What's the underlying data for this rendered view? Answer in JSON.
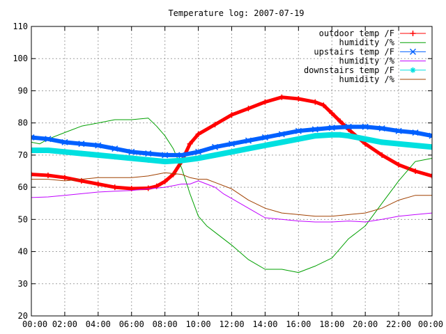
{
  "chart_data": {
    "type": "line",
    "title": "Temperature log: 2007-07-19",
    "xlabel": "",
    "ylabel": "",
    "xlim": [
      0,
      24
    ],
    "ylim": [
      20,
      110
    ],
    "grid": true,
    "legend_position": "top-right",
    "x_ticks": [
      {
        "value": 0,
        "label": "00:00"
      },
      {
        "value": 2,
        "label": "02:00"
      },
      {
        "value": 4,
        "label": "04:00"
      },
      {
        "value": 6,
        "label": "06:00"
      },
      {
        "value": 8,
        "label": "08:00"
      },
      {
        "value": 10,
        "label": "10:00"
      },
      {
        "value": 12,
        "label": "12:00"
      },
      {
        "value": 14,
        "label": "14:00"
      },
      {
        "value": 16,
        "label": "16:00"
      },
      {
        "value": 18,
        "label": "18:00"
      },
      {
        "value": 20,
        "label": "20:00"
      },
      {
        "value": 22,
        "label": "22:00"
      },
      {
        "value": 24,
        "label": "00:00"
      }
    ],
    "y_ticks": [
      {
        "value": 20,
        "label": "20"
      },
      {
        "value": 30,
        "label": "30"
      },
      {
        "value": 40,
        "label": "40"
      },
      {
        "value": 50,
        "label": "50"
      },
      {
        "value": 60,
        "label": "60"
      },
      {
        "value": 70,
        "label": "70"
      },
      {
        "value": 80,
        "label": "80"
      },
      {
        "value": 90,
        "label": "90"
      },
      {
        "value": 100,
        "label": "100"
      },
      {
        "value": 110,
        "label": "110"
      }
    ],
    "series": [
      {
        "name": "outdoor temp /F",
        "color": "#ff0000",
        "marker": "plus",
        "width": 5,
        "x": [
          0,
          1,
          2,
          3,
          4,
          5,
          6,
          7,
          7.5,
          8,
          8.5,
          9,
          9.5,
          10,
          11,
          12,
          13,
          14,
          15,
          16,
          17,
          17.5,
          18,
          18.5,
          19,
          20,
          21,
          22,
          23,
          24
        ],
        "y": [
          64,
          63.7,
          63,
          62,
          61,
          60,
          59.6,
          59.7,
          60.3,
          61.8,
          64,
          68,
          73.5,
          76.5,
          79.5,
          82.5,
          84.5,
          86.5,
          88,
          87.5,
          86.5,
          85.5,
          83,
          80.5,
          78,
          73.5,
          70,
          67,
          65,
          63.5
        ]
      },
      {
        "name": "humidity /%",
        "color": "#00a000",
        "marker": "none",
        "width": 1,
        "x": [
          0,
          0.5,
          1,
          2,
          3,
          4,
          5,
          6,
          7,
          7.5,
          8,
          8.5,
          9,
          9.5,
          10,
          10.5,
          11,
          12,
          13,
          14,
          15,
          16,
          17,
          18,
          19,
          20,
          21,
          22,
          23,
          24
        ],
        "y": [
          74,
          73.5,
          75,
          77,
          79,
          80,
          81,
          81,
          81.5,
          79,
          76,
          72,
          66,
          58,
          51,
          48,
          46,
          42,
          37.5,
          34.5,
          34.5,
          33.5,
          35.5,
          38,
          44,
          48,
          55,
          62,
          68,
          69
        ]
      },
      {
        "name": "upstairs temp /F",
        "color": "#0060ff",
        "marker": "cross",
        "width": 6,
        "x": [
          0,
          1,
          2,
          3,
          4,
          5,
          6,
          7,
          8,
          9,
          10,
          11,
          12,
          13,
          14,
          15,
          16,
          17,
          18,
          19,
          20,
          21,
          22,
          23,
          24
        ],
        "y": [
          75.5,
          75,
          74,
          73.5,
          73,
          72,
          71,
          70.5,
          70,
          70,
          71,
          72.5,
          73.5,
          74.5,
          75.5,
          76.5,
          77.5,
          78,
          78.5,
          78.8,
          78.8,
          78.3,
          77.5,
          77,
          76
        ]
      },
      {
        "name": "humidity /%",
        "color": "#c000ff",
        "marker": "none",
        "width": 1,
        "x": [
          0,
          1,
          2,
          3,
          4,
          5,
          6,
          7,
          8,
          9,
          9.5,
          10,
          11,
          11.5,
          12,
          13,
          13.5,
          14,
          15,
          16,
          17,
          18,
          19,
          20,
          21,
          22,
          23,
          24
        ],
        "y": [
          56.8,
          57,
          57.5,
          58,
          58.5,
          58.8,
          59,
          59.5,
          60,
          61,
          61,
          62,
          60,
          58,
          56.5,
          53.5,
          52,
          50.5,
          50,
          49.5,
          49.2,
          49.2,
          49.5,
          49.2,
          50,
          51,
          51.5,
          52
        ]
      },
      {
        "name": "downstairs temp /F",
        "color": "#00e0e0",
        "marker": "star",
        "width": 8,
        "x": [
          0,
          1,
          2,
          3,
          4,
          5,
          6,
          7,
          8,
          9,
          10,
          11,
          12,
          13,
          14,
          15,
          16,
          17,
          18,
          18.5,
          19,
          20,
          21,
          22,
          23,
          24
        ],
        "y": [
          71.5,
          71.5,
          71,
          70.5,
          70,
          69.5,
          69,
          68.5,
          68,
          68.3,
          69,
          70,
          71,
          72,
          73,
          74,
          75,
          76,
          76.3,
          76.3,
          76,
          75,
          74,
          73.5,
          73,
          72.5
        ]
      },
      {
        "name": "humidity /%",
        "color": "#a04000",
        "marker": "none",
        "width": 1,
        "x": [
          0,
          1,
          2,
          3,
          4,
          5,
          6,
          7,
          8,
          9,
          9.5,
          10,
          10.5,
          11,
          12,
          13,
          14,
          15,
          16,
          17,
          18,
          19,
          20,
          21,
          22,
          23,
          24
        ],
        "y": [
          62.5,
          62.5,
          62,
          62.5,
          63,
          63,
          63,
          63.5,
          64.5,
          64,
          63,
          62.5,
          62.5,
          61.5,
          59.5,
          56,
          53.5,
          52,
          51.5,
          51,
          51,
          51.5,
          52,
          53.5,
          56,
          57.5,
          57.5
        ]
      }
    ]
  }
}
